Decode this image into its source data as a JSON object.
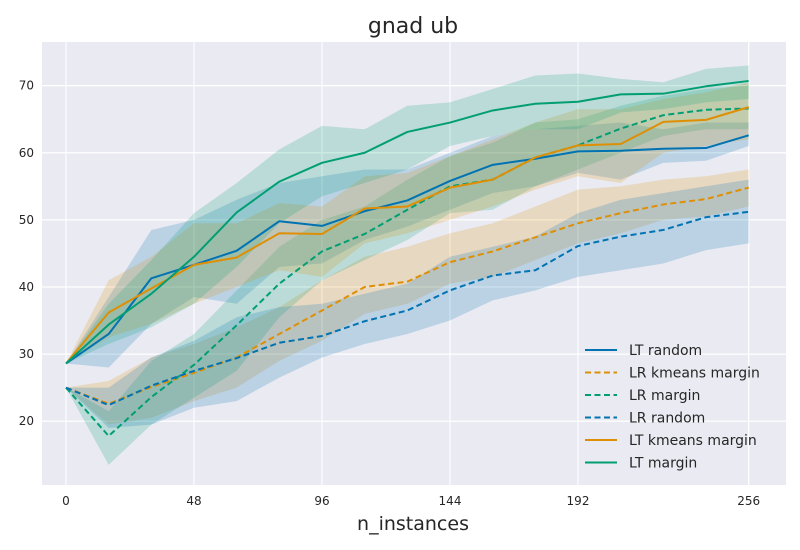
{
  "chart_data": {
    "type": "line",
    "title": "gnad ub",
    "xlabel": "n_instances",
    "ylabel": "",
    "xlim": [
      -9,
      270
    ],
    "ylim": [
      10.5,
      76.5
    ],
    "xticks": [
      0,
      48,
      96,
      144,
      192,
      256
    ],
    "yticks": [
      20,
      30,
      40,
      50,
      60,
      70
    ],
    "grid": true,
    "legend_position": "lower-right",
    "x": [
      0,
      16,
      32,
      48,
      64,
      80,
      96,
      112,
      128,
      144,
      160,
      176,
      192,
      208,
      224,
      240,
      256
    ],
    "series": [
      {
        "name": "LT random",
        "color": "#0173b2",
        "dash": "solid",
        "values": [
          28.6,
          33.0,
          41.3,
          43.3,
          45.4,
          49.8,
          49.1,
          51.3,
          52.9,
          55.8,
          58.2,
          59.1,
          60.2,
          60.3,
          60.6,
          60.7,
          62.6
        ],
        "lower": [
          28.6,
          28.0,
          34.5,
          38.5,
          37.5,
          43.0,
          43.5,
          47.0,
          49.0,
          51.5,
          54.0,
          55.0,
          57.0,
          56.0,
          58.5,
          58.8,
          61.0
        ],
        "upper": [
          28.6,
          38.5,
          48.5,
          50.0,
          53.0,
          55.5,
          56.5,
          57.5,
          57.5,
          60.0,
          62.5,
          63.5,
          64.0,
          64.5,
          63.5,
          64.5,
          64.5
        ]
      },
      {
        "name": "LR kmeans margin",
        "color": "#de8f05",
        "dash": "dashed",
        "values": [
          25.0,
          22.6,
          25.1,
          27.2,
          29.5,
          33.0,
          36.5,
          40.0,
          40.8,
          43.7,
          45.3,
          47.4,
          49.5,
          51.0,
          52.3,
          53.1,
          54.8
        ],
        "lower": [
          25.0,
          19.5,
          20.5,
          23.0,
          25.0,
          29.0,
          32.0,
          36.0,
          37.5,
          40.5,
          41.5,
          44.0,
          46.5,
          48.0,
          50.0,
          50.5,
          52.0
        ],
        "upper": [
          25.0,
          26.0,
          29.5,
          31.5,
          34.0,
          37.0,
          41.0,
          44.5,
          46.0,
          48.0,
          49.5,
          52.0,
          54.5,
          55.0,
          56.0,
          56.5,
          57.5
        ]
      },
      {
        "name": "LR margin",
        "color": "#029e73",
        "dash": "dashed",
        "values": [
          25.0,
          17.8,
          23.6,
          28.4,
          34.3,
          40.5,
          45.3,
          47.9,
          51.5,
          55.0,
          56.0,
          59.3,
          61.1,
          63.6,
          65.6,
          66.4,
          66.6
        ],
        "lower": [
          25.0,
          13.5,
          19.5,
          23.5,
          27.5,
          35.5,
          41.0,
          44.0,
          47.0,
          51.0,
          51.5,
          55.0,
          57.5,
          60.0,
          62.5,
          63.5,
          63.5
        ],
        "upper": [
          25.0,
          21.5,
          29.0,
          33.0,
          39.5,
          46.0,
          50.0,
          52.0,
          56.0,
          59.5,
          61.5,
          64.5,
          65.0,
          67.0,
          68.5,
          69.5,
          70.0
        ]
      },
      {
        "name": "LR random",
        "color": "#0173b2",
        "dash": "dashed",
        "values": [
          25.0,
          22.4,
          25.3,
          27.5,
          29.4,
          31.7,
          32.7,
          34.9,
          36.5,
          39.5,
          41.7,
          42.5,
          46.1,
          47.5,
          48.5,
          50.4,
          51.2
        ],
        "lower": [
          25.0,
          19.0,
          19.5,
          22.0,
          23.0,
          26.5,
          29.5,
          31.5,
          33.0,
          35.0,
          38.0,
          39.5,
          41.5,
          42.5,
          43.5,
          45.5,
          46.5
        ],
        "upper": [
          25.0,
          25.0,
          29.5,
          32.0,
          35.5,
          37.0,
          37.5,
          39.0,
          40.5,
          44.5,
          46.0,
          47.5,
          51.0,
          53.0,
          54.0,
          55.0,
          56.0
        ]
      },
      {
        "name": "LT kmeans margin",
        "color": "#de8f05",
        "dash": "solid",
        "values": [
          28.6,
          36.2,
          39.8,
          43.3,
          44.4,
          48.0,
          47.9,
          51.7,
          52.0,
          54.8,
          56.0,
          59.3,
          61.1,
          61.3,
          64.6,
          64.9,
          66.8
        ],
        "lower": [
          28.6,
          32.5,
          34.5,
          37.5,
          40.0,
          42.5,
          41.5,
          46.5,
          48.0,
          50.0,
          52.0,
          54.5,
          56.5,
          55.5,
          60.0,
          61.0,
          62.0
        ],
        "upper": [
          28.6,
          41.0,
          44.5,
          49.5,
          49.5,
          52.5,
          52.0,
          56.5,
          57.0,
          59.5,
          62.0,
          64.5,
          66.5,
          66.5,
          68.0,
          69.0,
          70.5
        ]
      },
      {
        "name": "LT margin",
        "color": "#029e73",
        "dash": "solid",
        "values": [
          28.6,
          34.4,
          39.0,
          44.5,
          51.1,
          55.7,
          58.5,
          60.0,
          63.1,
          64.5,
          66.3,
          67.3,
          67.6,
          68.7,
          68.8,
          69.9,
          70.7
        ],
        "lower": [
          28.6,
          31.5,
          34.0,
          37.5,
          43.0,
          49.5,
          53.5,
          55.5,
          57.5,
          61.0,
          62.5,
          63.5,
          63.5,
          66.0,
          66.5,
          67.5,
          68.0
        ],
        "upper": [
          28.6,
          37.5,
          44.0,
          51.0,
          55.5,
          60.5,
          64.0,
          63.5,
          67.0,
          67.5,
          69.5,
          71.5,
          71.8,
          71.0,
          70.5,
          72.5,
          73.0
        ]
      }
    ]
  }
}
